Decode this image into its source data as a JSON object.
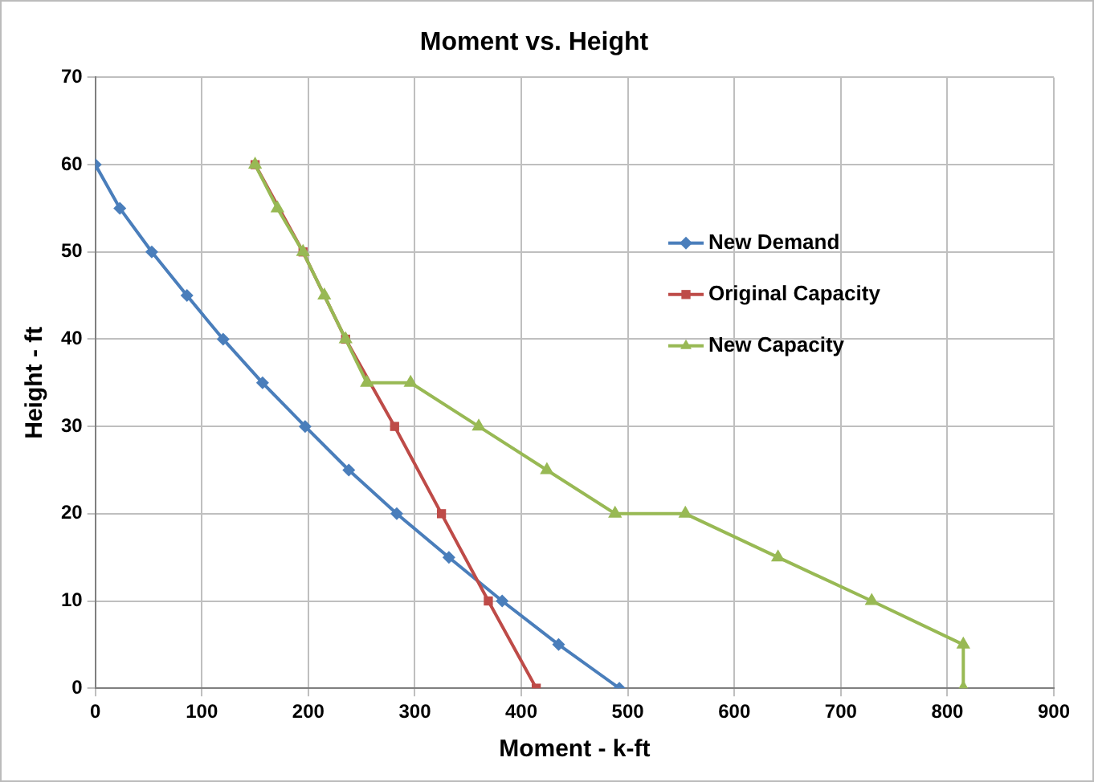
{
  "chart_data": {
    "type": "line",
    "title": "Moment vs. Height",
    "xlabel": "Moment - k-ft",
    "ylabel": "Height - ft",
    "xlim": [
      0,
      900
    ],
    "xticks": [
      0,
      100,
      200,
      300,
      400,
      500,
      600,
      700,
      800,
      900
    ],
    "ylim": [
      0,
      70
    ],
    "yticks": [
      0,
      10,
      20,
      30,
      40,
      50,
      60,
      70
    ],
    "grid": true,
    "legend": "right",
    "line_style": "solid",
    "series": [
      {
        "name": "New Demand",
        "color": "#4a7ebb",
        "marker": "diamond",
        "x": [
          0,
          23,
          53,
          86,
          120,
          157,
          197,
          238,
          283,
          332,
          382,
          435,
          492
        ],
        "values": [
          60,
          55,
          50,
          45,
          40,
          35,
          30,
          25,
          20,
          15,
          10,
          5,
          0
        ]
      },
      {
        "name": "Original Capacity",
        "color": "#be4b48",
        "marker": "square",
        "x": [
          150,
          195,
          235,
          281,
          325,
          369,
          414
        ],
        "values": [
          60,
          50,
          40,
          30,
          20,
          10,
          0
        ]
      },
      {
        "name": "New Capacity",
        "color": "#98b954",
        "marker": "triangle",
        "x": [
          150,
          171,
          195,
          215,
          235,
          255,
          296,
          360,
          424,
          488,
          554,
          641,
          729,
          815,
          815
        ],
        "values": [
          60,
          55,
          50,
          45,
          40,
          35,
          35,
          30,
          25,
          20,
          20,
          15,
          10,
          5,
          0
        ]
      }
    ]
  }
}
